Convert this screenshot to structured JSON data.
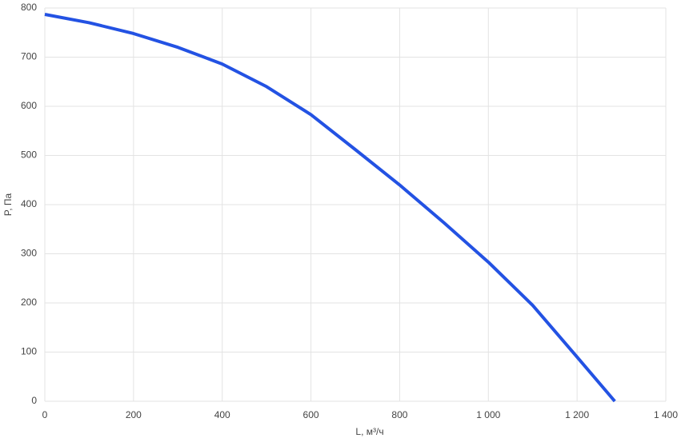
{
  "chart_data": {
    "type": "line",
    "x_label": "L, м³/ч",
    "y_label": "P, Па",
    "x": [
      0,
      100,
      200,
      300,
      400,
      500,
      600,
      700,
      800,
      900,
      1000,
      1100,
      1200,
      1285
    ],
    "series": [
      {
        "name": "P",
        "color": "#2352e3",
        "values": [
          787,
          770,
          748,
          720,
          686,
          640,
          583,
          512,
          440,
          363,
          283,
          195,
          90,
          0
        ]
      }
    ],
    "xlim": [
      0,
      1400
    ],
    "ylim": [
      0,
      800
    ],
    "xticks": [
      0,
      200,
      400,
      600,
      800,
      {
        "value": 1000,
        "label": "1 000"
      },
      {
        "value": 1200,
        "label": "1 200"
      },
      {
        "value": 1400,
        "label": "1 400"
      }
    ],
    "yticks": [
      0,
      100,
      200,
      300,
      400,
      500,
      600,
      700,
      800
    ],
    "grid": true
  }
}
